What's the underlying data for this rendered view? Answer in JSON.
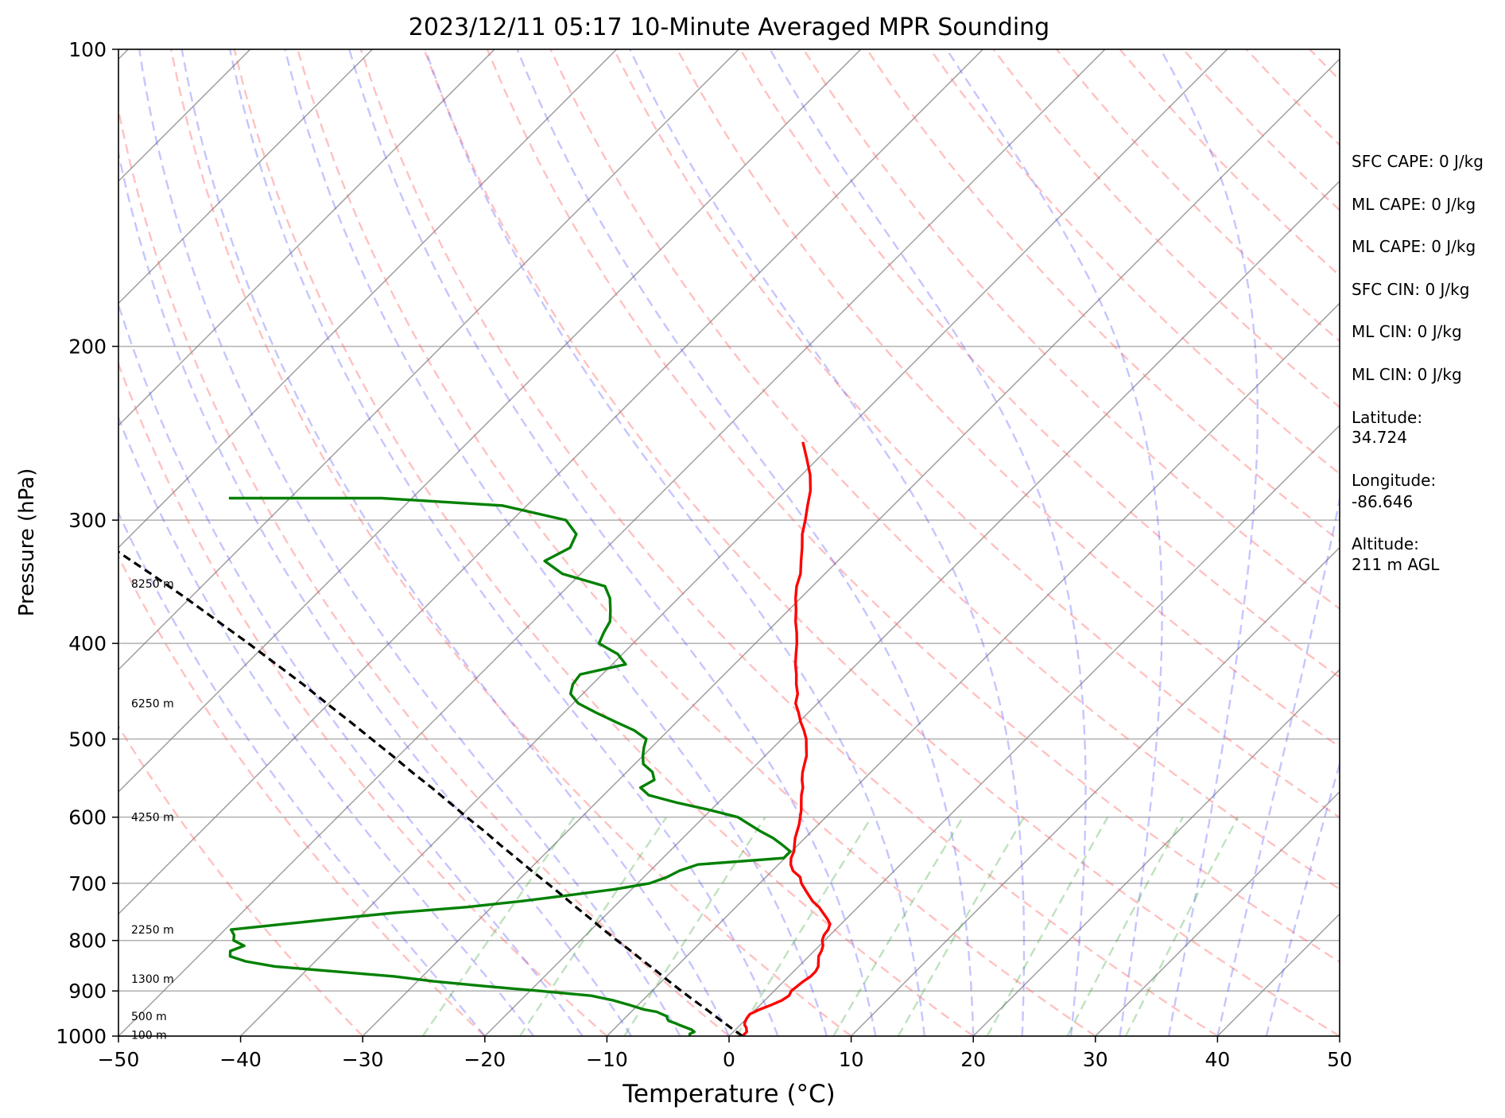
{
  "chart_data": {
    "type": "line",
    "title": "2023/12/11 05:17 10-Minute Averaged MPR Sounding",
    "xlabel": "Temperature (°C)",
    "ylabel": "Pressure (hPa)",
    "xlim": [
      -50,
      50
    ],
    "ylim": [
      1000,
      100
    ],
    "y_scale": "log",
    "x_ticks": [
      "−50",
      "−40",
      "−30",
      "−20",
      "−10",
      "0",
      "10",
      "20",
      "30",
      "40",
      "50"
    ],
    "y_ticks": [
      "100",
      "200",
      "300",
      "400",
      "500",
      "600",
      "700",
      "800",
      "900",
      "1000"
    ],
    "grid": true,
    "skew": true,
    "series": [
      {
        "key": "temperature",
        "color": "#ff0000",
        "points": [
          [
            1.1,
            1000
          ],
          [
            1.1,
            990
          ],
          [
            0.7,
            980
          ],
          [
            0.4,
            975
          ],
          [
            0.2,
            970
          ],
          [
            0.0,
            960
          ],
          [
            -0.1,
            950
          ],
          [
            0.3,
            940
          ],
          [
            0.9,
            930
          ],
          [
            1.4,
            920
          ],
          [
            1.6,
            910
          ],
          [
            1.4,
            900
          ],
          [
            1.5,
            890
          ],
          [
            1.6,
            880
          ],
          [
            1.8,
            870
          ],
          [
            1.8,
            860
          ],
          [
            1.6,
            850
          ],
          [
            1.2,
            840
          ],
          [
            0.8,
            830
          ],
          [
            0.6,
            820
          ],
          [
            0.3,
            810
          ],
          [
            -0.2,
            800
          ],
          [
            -0.5,
            790
          ],
          [
            -0.6,
            780
          ],
          [
            -0.9,
            770
          ],
          [
            -1.6,
            760
          ],
          [
            -2.4,
            750
          ],
          [
            -3.2,
            740
          ],
          [
            -4.2,
            730
          ],
          [
            -5.0,
            720
          ],
          [
            -5.8,
            710
          ],
          [
            -6.6,
            700
          ],
          [
            -7.2,
            690
          ],
          [
            -8.3,
            680
          ],
          [
            -9.0,
            670
          ],
          [
            -9.5,
            660
          ],
          [
            -9.8,
            650
          ],
          [
            -10.3,
            640
          ],
          [
            -10.8,
            630
          ],
          [
            -11.2,
            620
          ],
          [
            -11.6,
            610
          ],
          [
            -12.1,
            600
          ],
          [
            -12.6,
            590
          ],
          [
            -13.2,
            580
          ],
          [
            -13.8,
            570
          ],
          [
            -14.3,
            560
          ],
          [
            -15.0,
            550
          ],
          [
            -15.6,
            540
          ],
          [
            -16.1,
            530
          ],
          [
            -16.6,
            520
          ],
          [
            -17.3,
            510
          ],
          [
            -18.0,
            500
          ],
          [
            -18.9,
            490
          ],
          [
            -19.9,
            480
          ],
          [
            -20.8,
            470
          ],
          [
            -21.8,
            460
          ],
          [
            -22.4,
            450
          ],
          [
            -23.3,
            440
          ],
          [
            -24.1,
            430
          ],
          [
            -25.0,
            420
          ],
          [
            -25.8,
            410
          ],
          [
            -26.6,
            400
          ],
          [
            -27.5,
            390
          ],
          [
            -28.5,
            380
          ],
          [
            -29.4,
            370
          ],
          [
            -30.4,
            360
          ],
          [
            -31.3,
            350
          ],
          [
            -32.0,
            340
          ],
          [
            -33.0,
            330
          ],
          [
            -34.0,
            320
          ],
          [
            -35.1,
            310
          ],
          [
            -36.0,
            300
          ],
          [
            -37.0,
            290
          ],
          [
            -38.0,
            280
          ],
          [
            -39.3,
            270
          ],
          [
            -40.9,
            260
          ],
          [
            -42.6,
            250
          ]
        ]
      },
      {
        "key": "dewpoint",
        "color": "#008000",
        "points": [
          [
            -3.2,
            1000
          ],
          [
            -3.4,
            995
          ],
          [
            -3.2,
            990
          ],
          [
            -3.6,
            985
          ],
          [
            -4.9,
            975
          ],
          [
            -5.5,
            970
          ],
          [
            -6.2,
            965
          ],
          [
            -6.5,
            960
          ],
          [
            -6.7,
            955
          ],
          [
            -7.9,
            945
          ],
          [
            -9.1,
            940
          ],
          [
            -10.7,
            930
          ],
          [
            -12.4,
            920
          ],
          [
            -14.6,
            910
          ],
          [
            -19.2,
            900
          ],
          [
            -24.1,
            890
          ],
          [
            -28.7,
            880
          ],
          [
            -32.3,
            870
          ],
          [
            -37.6,
            860
          ],
          [
            -42.9,
            850
          ],
          [
            -45.7,
            840
          ],
          [
            -47.4,
            830
          ],
          [
            -47.8,
            820
          ],
          [
            -47.1,
            810
          ],
          [
            -48.4,
            800
          ],
          [
            -48.8,
            790
          ],
          [
            -49.5,
            780
          ],
          [
            -45.6,
            770
          ],
          [
            -41.7,
            760
          ],
          [
            -37.5,
            750
          ],
          [
            -32.0,
            740
          ],
          [
            -28.1,
            730
          ],
          [
            -24.7,
            720
          ],
          [
            -21.4,
            710
          ],
          [
            -19.0,
            700
          ],
          [
            -18.1,
            690
          ],
          [
            -17.6,
            680
          ],
          [
            -16.6,
            670
          ],
          [
            -10.1,
            660
          ],
          [
            -10.1,
            650
          ],
          [
            -11.3,
            640
          ],
          [
            -12.6,
            630
          ],
          [
            -14.2,
            620
          ],
          [
            -15.7,
            610
          ],
          [
            -17.2,
            600
          ],
          [
            -20.1,
            590
          ],
          [
            -23.4,
            580
          ],
          [
            -26.3,
            570
          ],
          [
            -27.6,
            560
          ],
          [
            -27.1,
            550
          ],
          [
            -27.9,
            540
          ],
          [
            -29.3,
            530
          ],
          [
            -30.0,
            520
          ],
          [
            -30.6,
            510
          ],
          [
            -31.1,
            500
          ],
          [
            -32.8,
            490
          ],
          [
            -35.1,
            480
          ],
          [
            -37.4,
            470
          ],
          [
            -39.6,
            460
          ],
          [
            -41.0,
            450
          ],
          [
            -41.6,
            440
          ],
          [
            -41.8,
            430
          ],
          [
            -38.9,
            420
          ],
          [
            -40.4,
            410
          ],
          [
            -42.8,
            400
          ],
          [
            -43.3,
            390
          ],
          [
            -43.7,
            380
          ],
          [
            -44.6,
            370
          ],
          [
            -45.6,
            360
          ],
          [
            -47.0,
            350
          ],
          [
            -51.5,
            340
          ],
          [
            -54.0,
            330
          ],
          [
            -53.0,
            320
          ],
          [
            -53.6,
            310
          ],
          [
            -55.6,
            300
          ],
          [
            -62.0,
            290
          ],
          [
            -72.5,
            285
          ],
          [
            -85.0,
            285
          ]
        ]
      },
      {
        "key": "parcel",
        "color": "#000000",
        "points": [
          [
            1.1,
            1000
          ],
          [
            -0.6,
            980
          ],
          [
            -2.3,
            960
          ],
          [
            -4.0,
            940
          ],
          [
            -5.8,
            920
          ],
          [
            -7.6,
            900
          ],
          [
            -9.4,
            880
          ],
          [
            -11.2,
            860
          ],
          [
            -13.1,
            840
          ],
          [
            -15.0,
            820
          ],
          [
            -17.0,
            800
          ],
          [
            -19.0,
            780
          ],
          [
            -21.0,
            760
          ],
          [
            -23.1,
            740
          ],
          [
            -25.2,
            720
          ],
          [
            -27.4,
            700
          ],
          [
            -29.7,
            680
          ],
          [
            -32.0,
            660
          ],
          [
            -34.4,
            640
          ],
          [
            -36.8,
            620
          ],
          [
            -39.4,
            600
          ],
          [
            -42.0,
            580
          ],
          [
            -44.7,
            560
          ],
          [
            -47.6,
            540
          ],
          [
            -50.5,
            520
          ],
          [
            -53.6,
            500
          ],
          [
            -56.8,
            480
          ],
          [
            -60.2,
            460
          ],
          [
            -63.7,
            440
          ],
          [
            -67.5,
            420
          ],
          [
            -71.5,
            400
          ],
          [
            -75.8,
            380
          ],
          [
            -80.3,
            360
          ],
          [
            -85.2,
            340
          ],
          [
            -90.5,
            320
          ],
          [
            -96.3,
            300
          ],
          [
            -98.5,
            293
          ]
        ]
      }
    ],
    "height_labels": [
      "8250 m",
      "6250 m",
      "4250 m",
      "2250 m",
      "1300 m",
      "500 m",
      "100 m"
    ],
    "height_label_pressures": [
      348,
      460,
      600,
      780,
      875,
      955,
      997
    ],
    "info": {
      "sfc_cape": "SFC CAPE: 0 J/kg",
      "ml_cape": "ML CAPE: 0 J/kg",
      "ml_cape_2": "ML CAPE: 0 J/kg",
      "sfc_cin": "SFC CIN: 0 J/kg",
      "ml_cin": "ML CIN: 0 J/kg",
      "ml_cin_2": "ML CIN: 0 J/kg",
      "latitude_label": "Latitude:",
      "latitude_value": "34.724",
      "longitude_label": "Longitude:",
      "longitude_value": "-86.646",
      "altitude_label": "Altitude:",
      "altitude_value": "211 m AGL"
    },
    "colors": {
      "isotherm": "#7f7f7f",
      "dry_adiabat": "#ff6464",
      "moist_adiabat": "#5a5aff",
      "mixing_ratio": "#47a847"
    }
  }
}
